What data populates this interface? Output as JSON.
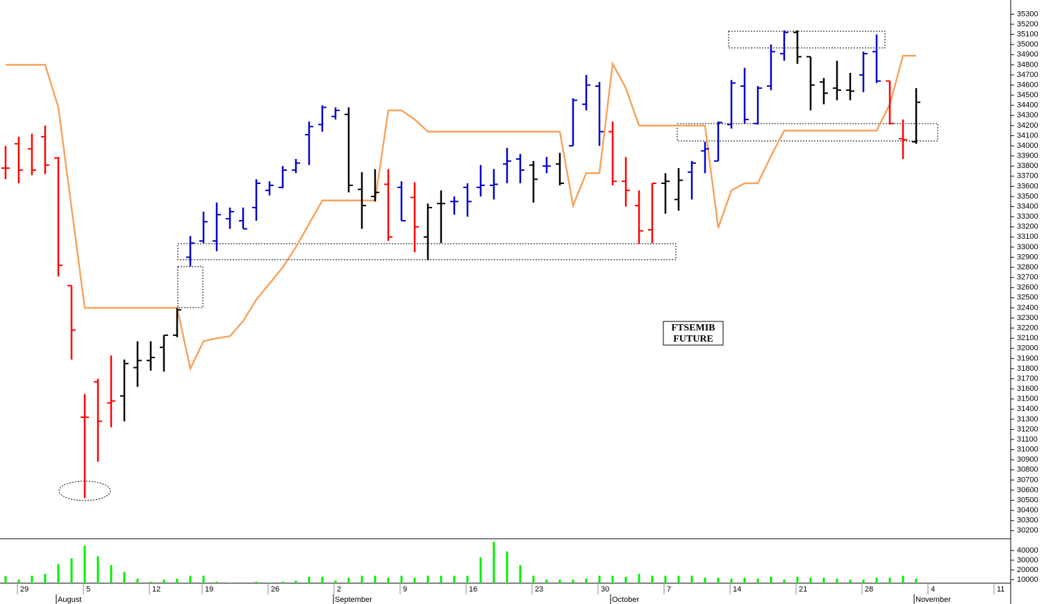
{
  "chart_data": [
    {
      "type": "ohlc",
      "annotation_lines": [
        "FTSEMIB",
        "FUTURE"
      ],
      "categories": [
        null,
        "29",
        null,
        null,
        null,
        null,
        "5",
        null,
        null,
        null,
        null,
        "12",
        null,
        null,
        null,
        "19",
        null,
        null,
        null,
        null,
        "26",
        null,
        null,
        null,
        null,
        "2",
        null,
        null,
        null,
        null,
        "9",
        null,
        null,
        null,
        null,
        "16",
        null,
        null,
        null,
        null,
        "23",
        null,
        null,
        null,
        null,
        "30",
        null,
        null,
        null,
        null,
        "7",
        null,
        null,
        null,
        null,
        "14",
        null,
        null,
        null,
        null,
        "21",
        null,
        null,
        null,
        null,
        "28",
        null,
        null,
        null,
        null,
        "4",
        null,
        null,
        null,
        null,
        "11"
      ],
      "month_labels": [
        null,
        null,
        null,
        null,
        "August",
        null,
        null,
        null,
        null,
        null,
        null,
        null,
        null,
        null,
        null,
        null,
        null,
        null,
        null,
        null,
        null,
        null,
        null,
        null,
        null,
        "September",
        null,
        null,
        null,
        null,
        null,
        null,
        null,
        null,
        null,
        null,
        null,
        null,
        null,
        null,
        null,
        null,
        null,
        null,
        null,
        null,
        "October",
        null,
        null,
        null,
        null,
        null,
        null,
        null,
        null,
        null,
        null,
        null,
        null,
        null,
        null,
        null,
        null,
        null,
        null,
        null,
        null,
        null,
        null,
        "November",
        null,
        null,
        null,
        null,
        null,
        null
      ],
      "open": [
        33780,
        34020,
        33970,
        34090,
        33880,
        32620,
        31320,
        31670,
        31460,
        31530,
        31810,
        31880,
        32010,
        32130,
        32900,
        33060,
        33060,
        33280,
        33260,
        33390,
        33560,
        33590,
        33760,
        34110,
        34210,
        34290,
        34310,
        33570,
        33500,
        33620,
        33590,
        33490,
        33100,
        33430,
        33450,
        33590,
        33590,
        33610,
        33820,
        33870,
        33810,
        33800,
        33820,
        34000,
        34410,
        34590,
        34140,
        33650,
        33410,
        33170,
        33630,
        33470,
        33740,
        33950,
        33850,
        34210,
        34590,
        34220,
        34590,
        34910,
        35120,
        34880,
        34630,
        34570,
        34550,
        34700,
        34930,
        34640,
        34070,
        34040,
        null,
        null,
        null,
        null,
        null,
        null
      ],
      "high": [
        34000,
        34090,
        34120,
        34200,
        33890,
        32620,
        31550,
        31700,
        31930,
        31890,
        32070,
        32070,
        32130,
        32400,
        33110,
        33350,
        33440,
        33390,
        33390,
        33670,
        33650,
        33800,
        33870,
        34240,
        34400,
        34380,
        34380,
        33740,
        33770,
        33770,
        33650,
        33640,
        33430,
        33560,
        33500,
        33630,
        33810,
        33770,
        33980,
        33920,
        33850,
        33890,
        33930,
        34470,
        34700,
        34630,
        34240,
        33890,
        33560,
        33630,
        33730,
        33780,
        33850,
        34040,
        34240,
        34650,
        34770,
        34590,
        35000,
        35140,
        35140,
        34880,
        34670,
        34840,
        34720,
        34930,
        35100,
        34640,
        34260,
        34570,
        null,
        null,
        null,
        null,
        null,
        null
      ],
      "low": [
        33670,
        33630,
        33710,
        33720,
        32710,
        31890,
        30520,
        30880,
        31220,
        31280,
        31620,
        31780,
        31770,
        32110,
        32810,
        33040,
        32960,
        33180,
        33180,
        33260,
        33510,
        33580,
        33730,
        33810,
        34140,
        34260,
        33540,
        33180,
        33450,
        33060,
        33260,
        32950,
        32870,
        33040,
        33320,
        33300,
        33500,
        33470,
        33630,
        33630,
        33440,
        33730,
        33610,
        34000,
        34350,
        34000,
        33610,
        33400,
        33030,
        33040,
        33330,
        33360,
        33470,
        33730,
        33850,
        34170,
        34220,
        34210,
        34550,
        34840,
        34810,
        34350,
        34410,
        34450,
        34450,
        34530,
        34620,
        34210,
        33870,
        34020,
        null,
        null,
        null,
        null,
        null,
        null
      ],
      "close": [
        33780,
        33760,
        33760,
        33810,
        32820,
        32180,
        31320,
        31280,
        31480,
        31850,
        31880,
        31910,
        32130,
        32380,
        33040,
        33250,
        33320,
        33350,
        33180,
        33630,
        33610,
        33760,
        33830,
        34190,
        34380,
        34350,
        33610,
        33410,
        33540,
        33100,
        33260,
        33200,
        33390,
        33430,
        33450,
        33450,
        33610,
        33620,
        33850,
        33760,
        33670,
        33800,
        33630,
        34450,
        34600,
        34140,
        33650,
        33560,
        33160,
        33630,
        33650,
        33660,
        33830,
        33970,
        34230,
        34620,
        34260,
        34570,
        34930,
        35120,
        34880,
        34600,
        34520,
        34550,
        34540,
        34910,
        34640,
        34220,
        34060,
        34430,
        null,
        null,
        null,
        null,
        null,
        null
      ],
      "bar_colors": [
        "#ff0000",
        "#ff0000",
        "#ff0000",
        "#ff0000",
        "#ff0000",
        "#ff0000",
        "#ff0000",
        "#ff0000",
        "#ff0000",
        "#000000",
        "#000000",
        "#000000",
        "#000000",
        "#000000",
        "#0000cc",
        "#0000cc",
        "#0000cc",
        "#0000cc",
        "#0000cc",
        "#0000cc",
        "#0000cc",
        "#0000cc",
        "#0000cc",
        "#0000cc",
        "#0000cc",
        "#0000cc",
        "#000000",
        "#000000",
        "#000000",
        "#ff0000",
        "#0000cc",
        "#ff0000",
        "#000000",
        "#000000",
        "#0000cc",
        "#0000cc",
        "#0000cc",
        "#0000cc",
        "#0000cc",
        "#0000cc",
        "#000000",
        "#0000cc",
        "#000000",
        "#0000cc",
        "#0000cc",
        "#0000cc",
        "#ff0000",
        "#ff0000",
        "#ff0000",
        "#ff0000",
        "#000000",
        "#000000",
        "#0000cc",
        "#0000cc",
        "#0000cc",
        "#0000cc",
        "#0000cc",
        "#0000cc",
        "#0000cc",
        "#0000cc",
        "#000000",
        "#000000",
        "#000000",
        "#000000",
        "#000000",
        "#0000cc",
        "#0000cc",
        "#ff0000",
        "#ff0000",
        "#000000",
        null,
        null,
        null,
        null,
        null,
        null
      ],
      "line": {
        "color": "#f7a35c",
        "values": [
          34800,
          34800,
          34800,
          34800,
          34380,
          33390,
          32400,
          32400,
          32400,
          32400,
          32400,
          32400,
          32400,
          32400,
          31800,
          32070,
          32100,
          32120,
          32270,
          32480,
          32640,
          32800,
          33000,
          33230,
          33460,
          33460,
          33460,
          33460,
          33460,
          34350,
          34350,
          34260,
          34140,
          34140,
          34140,
          34140,
          34140,
          34140,
          34140,
          34140,
          34140,
          34140,
          34140,
          33410,
          33730,
          33730,
          34810,
          34570,
          34200,
          34200,
          34200,
          34200,
          34200,
          34200,
          33190,
          33560,
          33630,
          33630,
          33900,
          34150,
          34150,
          34150,
          34150,
          34150,
          34150,
          34150,
          34150,
          34410,
          34890,
          34890,
          null,
          null,
          null,
          null,
          null,
          null
        ]
      },
      "ylim": [
        30120,
        35440
      ],
      "yticks": [
        30200,
        30300,
        30400,
        30500,
        30600,
        30700,
        30800,
        30900,
        31000,
        31100,
        31200,
        31300,
        31400,
        31500,
        31600,
        31700,
        31800,
        31900,
        32000,
        32100,
        32200,
        32300,
        32400,
        32500,
        32600,
        32700,
        32800,
        32900,
        33000,
        33100,
        33200,
        33300,
        33400,
        33500,
        33600,
        33700,
        33800,
        33900,
        34000,
        34100,
        34200,
        34300,
        34400,
        34500,
        34600,
        34700,
        34800,
        34900,
        35000,
        35100,
        35200,
        35300
      ]
    },
    {
      "type": "bar",
      "color": "#00ee00",
      "values": [
        13600,
        10000,
        14000,
        16000,
        26000,
        32000,
        45000,
        34000,
        25000,
        18000,
        11000,
        8000,
        10000,
        11000,
        14000,
        14000,
        8000,
        7000,
        6000,
        8000,
        7000,
        8000,
        9000,
        13000,
        13000,
        9000,
        12000,
        14000,
        14000,
        12000,
        14000,
        12000,
        14000,
        14000,
        14000,
        14000,
        33000,
        49000,
        39000,
        25000,
        14000,
        10000,
        10000,
        10000,
        11000,
        14000,
        14000,
        13000,
        16000,
        14000,
        14000,
        14000,
        14000,
        12000,
        12000,
        11000,
        12000,
        11000,
        13000,
        10000,
        13000,
        12000,
        12000,
        11000,
        10000,
        10000,
        12000,
        12000,
        14000,
        11000,
        null,
        null,
        null,
        null,
        null,
        null
      ],
      "ylim": [
        6400,
        52100
      ],
      "yticks": [
        10000,
        20000,
        30000,
        40000
      ]
    }
  ]
}
